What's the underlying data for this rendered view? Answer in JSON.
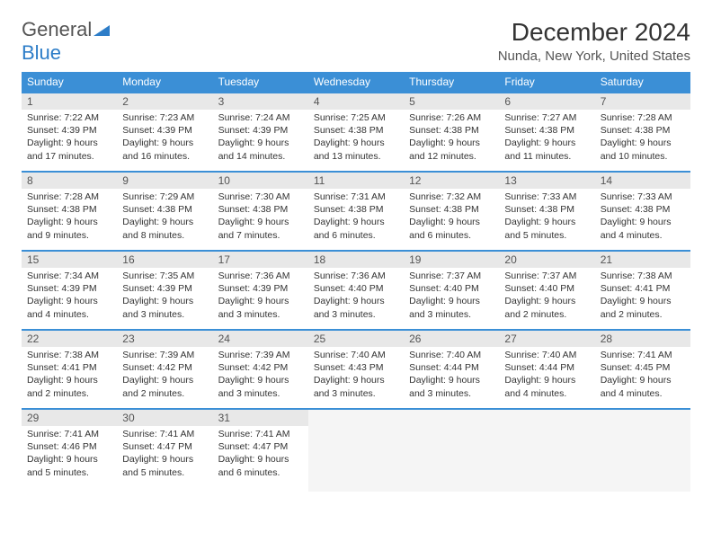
{
  "logo": {
    "text_general": "General",
    "text_blue": "Blue"
  },
  "title": "December 2024",
  "location": "Nunda, New York, United States",
  "colors": {
    "header_bg": "#3b8fd6",
    "day_num_bg": "#e8e8e8",
    "border": "#3b8fd6"
  },
  "weekdays": [
    "Sunday",
    "Monday",
    "Tuesday",
    "Wednesday",
    "Thursday",
    "Friday",
    "Saturday"
  ],
  "weeks": [
    [
      {
        "n": "1",
        "sr": "Sunrise: 7:22 AM",
        "ss": "Sunset: 4:39 PM",
        "d1": "Daylight: 9 hours",
        "d2": "and 17 minutes."
      },
      {
        "n": "2",
        "sr": "Sunrise: 7:23 AM",
        "ss": "Sunset: 4:39 PM",
        "d1": "Daylight: 9 hours",
        "d2": "and 16 minutes."
      },
      {
        "n": "3",
        "sr": "Sunrise: 7:24 AM",
        "ss": "Sunset: 4:39 PM",
        "d1": "Daylight: 9 hours",
        "d2": "and 14 minutes."
      },
      {
        "n": "4",
        "sr": "Sunrise: 7:25 AM",
        "ss": "Sunset: 4:38 PM",
        "d1": "Daylight: 9 hours",
        "d2": "and 13 minutes."
      },
      {
        "n": "5",
        "sr": "Sunrise: 7:26 AM",
        "ss": "Sunset: 4:38 PM",
        "d1": "Daylight: 9 hours",
        "d2": "and 12 minutes."
      },
      {
        "n": "6",
        "sr": "Sunrise: 7:27 AM",
        "ss": "Sunset: 4:38 PM",
        "d1": "Daylight: 9 hours",
        "d2": "and 11 minutes."
      },
      {
        "n": "7",
        "sr": "Sunrise: 7:28 AM",
        "ss": "Sunset: 4:38 PM",
        "d1": "Daylight: 9 hours",
        "d2": "and 10 minutes."
      }
    ],
    [
      {
        "n": "8",
        "sr": "Sunrise: 7:28 AM",
        "ss": "Sunset: 4:38 PM",
        "d1": "Daylight: 9 hours",
        "d2": "and 9 minutes."
      },
      {
        "n": "9",
        "sr": "Sunrise: 7:29 AM",
        "ss": "Sunset: 4:38 PM",
        "d1": "Daylight: 9 hours",
        "d2": "and 8 minutes."
      },
      {
        "n": "10",
        "sr": "Sunrise: 7:30 AM",
        "ss": "Sunset: 4:38 PM",
        "d1": "Daylight: 9 hours",
        "d2": "and 7 minutes."
      },
      {
        "n": "11",
        "sr": "Sunrise: 7:31 AM",
        "ss": "Sunset: 4:38 PM",
        "d1": "Daylight: 9 hours",
        "d2": "and 6 minutes."
      },
      {
        "n": "12",
        "sr": "Sunrise: 7:32 AM",
        "ss": "Sunset: 4:38 PM",
        "d1": "Daylight: 9 hours",
        "d2": "and 6 minutes."
      },
      {
        "n": "13",
        "sr": "Sunrise: 7:33 AM",
        "ss": "Sunset: 4:38 PM",
        "d1": "Daylight: 9 hours",
        "d2": "and 5 minutes."
      },
      {
        "n": "14",
        "sr": "Sunrise: 7:33 AM",
        "ss": "Sunset: 4:38 PM",
        "d1": "Daylight: 9 hours",
        "d2": "and 4 minutes."
      }
    ],
    [
      {
        "n": "15",
        "sr": "Sunrise: 7:34 AM",
        "ss": "Sunset: 4:39 PM",
        "d1": "Daylight: 9 hours",
        "d2": "and 4 minutes."
      },
      {
        "n": "16",
        "sr": "Sunrise: 7:35 AM",
        "ss": "Sunset: 4:39 PM",
        "d1": "Daylight: 9 hours",
        "d2": "and 3 minutes."
      },
      {
        "n": "17",
        "sr": "Sunrise: 7:36 AM",
        "ss": "Sunset: 4:39 PM",
        "d1": "Daylight: 9 hours",
        "d2": "and 3 minutes."
      },
      {
        "n": "18",
        "sr": "Sunrise: 7:36 AM",
        "ss": "Sunset: 4:40 PM",
        "d1": "Daylight: 9 hours",
        "d2": "and 3 minutes."
      },
      {
        "n": "19",
        "sr": "Sunrise: 7:37 AM",
        "ss": "Sunset: 4:40 PM",
        "d1": "Daylight: 9 hours",
        "d2": "and 3 minutes."
      },
      {
        "n": "20",
        "sr": "Sunrise: 7:37 AM",
        "ss": "Sunset: 4:40 PM",
        "d1": "Daylight: 9 hours",
        "d2": "and 2 minutes."
      },
      {
        "n": "21",
        "sr": "Sunrise: 7:38 AM",
        "ss": "Sunset: 4:41 PM",
        "d1": "Daylight: 9 hours",
        "d2": "and 2 minutes."
      }
    ],
    [
      {
        "n": "22",
        "sr": "Sunrise: 7:38 AM",
        "ss": "Sunset: 4:41 PM",
        "d1": "Daylight: 9 hours",
        "d2": "and 2 minutes."
      },
      {
        "n": "23",
        "sr": "Sunrise: 7:39 AM",
        "ss": "Sunset: 4:42 PM",
        "d1": "Daylight: 9 hours",
        "d2": "and 2 minutes."
      },
      {
        "n": "24",
        "sr": "Sunrise: 7:39 AM",
        "ss": "Sunset: 4:42 PM",
        "d1": "Daylight: 9 hours",
        "d2": "and 3 minutes."
      },
      {
        "n": "25",
        "sr": "Sunrise: 7:40 AM",
        "ss": "Sunset: 4:43 PM",
        "d1": "Daylight: 9 hours",
        "d2": "and 3 minutes."
      },
      {
        "n": "26",
        "sr": "Sunrise: 7:40 AM",
        "ss": "Sunset: 4:44 PM",
        "d1": "Daylight: 9 hours",
        "d2": "and 3 minutes."
      },
      {
        "n": "27",
        "sr": "Sunrise: 7:40 AM",
        "ss": "Sunset: 4:44 PM",
        "d1": "Daylight: 9 hours",
        "d2": "and 4 minutes."
      },
      {
        "n": "28",
        "sr": "Sunrise: 7:41 AM",
        "ss": "Sunset: 4:45 PM",
        "d1": "Daylight: 9 hours",
        "d2": "and 4 minutes."
      }
    ],
    [
      {
        "n": "29",
        "sr": "Sunrise: 7:41 AM",
        "ss": "Sunset: 4:46 PM",
        "d1": "Daylight: 9 hours",
        "d2": "and 5 minutes."
      },
      {
        "n": "30",
        "sr": "Sunrise: 7:41 AM",
        "ss": "Sunset: 4:47 PM",
        "d1": "Daylight: 9 hours",
        "d2": "and 5 minutes."
      },
      {
        "n": "31",
        "sr": "Sunrise: 7:41 AM",
        "ss": "Sunset: 4:47 PM",
        "d1": "Daylight: 9 hours",
        "d2": "and 6 minutes."
      },
      null,
      null,
      null,
      null
    ]
  ]
}
